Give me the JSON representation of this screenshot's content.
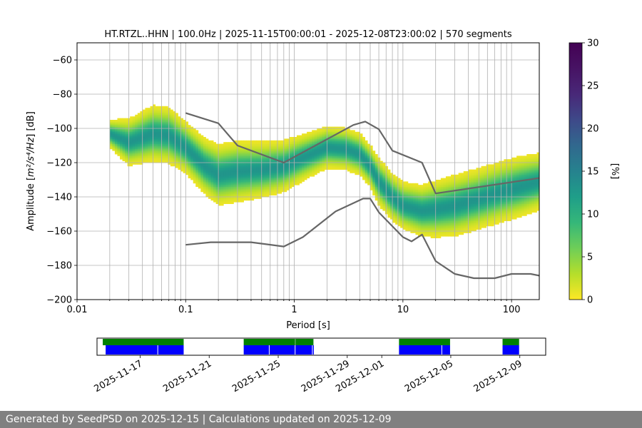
{
  "chart_data": [
    {
      "type": "heatmap",
      "title": "HT.RTZL..HHN | 100.0Hz | 2025-11-15T00:00:01 - 2025-12-08T23:00:02 | 570 segments",
      "xlabel": "Period [s]",
      "ylabel_prefix": "Amplitude [",
      "ylabel_math": "m²/s⁴/Hz",
      "ylabel_suffix": "] [dB]",
      "xscale": "log",
      "xlim": [
        0.01,
        180
      ],
      "ylim": [
        -200,
        -50
      ],
      "xticks": [
        0.01,
        0.1,
        1,
        10,
        100
      ],
      "xtick_labels": [
        "0.01",
        "0.1",
        "1",
        "10",
        "100"
      ],
      "yticks": [
        -200,
        -180,
        -160,
        -140,
        -120,
        -100,
        -80,
        -60
      ],
      "ytick_labels": [
        "−200",
        "−180",
        "−160",
        "−140",
        "−120",
        "−100",
        "−80",
        "−60"
      ],
      "grid": true,
      "colorbar": {
        "label": "[%]",
        "range": [
          0,
          30
        ],
        "ticks": [
          0,
          5,
          10,
          15,
          20,
          25,
          30
        ],
        "tick_labels": [
          "0",
          "5",
          "10",
          "15",
          "20",
          "25",
          "30"
        ],
        "colormap": "viridis"
      },
      "ppsd_mode": {
        "name": "",
        "period": [
          0.02,
          0.03,
          0.05,
          0.07,
          0.1,
          0.15,
          0.2,
          0.3,
          0.5,
          0.8,
          1.2,
          2,
          3,
          4,
          5,
          6,
          8,
          10,
          15,
          20,
          30,
          50,
          80,
          120,
          180
        ],
        "db": [
          -103,
          -108,
          -103,
          -104,
          -111,
          -122,
          -127,
          -125,
          -124,
          -122,
          -117,
          -111,
          -112,
          -115,
          -122,
          -131,
          -140,
          -145,
          -148,
          -147,
          -145,
          -141,
          -137,
          -134,
          -131
        ]
      },
      "ppsd_spread_db": [
        6,
        10,
        12,
        12,
        11,
        12,
        13,
        13,
        12,
        11,
        10,
        9,
        9,
        9,
        9,
        10,
        10,
        10,
        11,
        12,
        13,
        13,
        13,
        13,
        12
      ],
      "series": [
        {
          "period": [
            0.1,
            0.2,
            0.3,
            0.8,
            3.5,
            4.5,
            6,
            8,
            15,
            20,
            180
          ],
          "db": [
            -91,
            -97,
            -110,
            -120,
            -98,
            -96,
            -100.5,
            -113,
            -120,
            -138,
            -129
          ]
        },
        {
          "period": [
            0.1,
            0.17,
            0.4,
            0.8,
            1.2,
            2.4,
            4.3,
            5,
            6,
            10,
            12,
            15,
            20,
            30,
            45,
            70,
            100,
            150,
            180
          ],
          "db": [
            -168,
            -166.5,
            -166.5,
            -169,
            -163.5,
            -148.5,
            -141,
            -141,
            -149,
            -163.5,
            -166,
            -162,
            -177.5,
            -185,
            -187.5,
            -187.5,
            -185,
            -185,
            -186
          ]
        }
      ]
    },
    {
      "type": "timeline",
      "date_ticks": [
        "2025-11-17",
        "2025-11-21",
        "2025-11-25",
        "2025-11-29",
        "2025-12-01",
        "2025-12-05",
        "2025-12-09"
      ],
      "date_range": [
        "2025-11-14T12:00:00",
        "2025-12-10T12:00:00"
      ],
      "coverage_colors": {
        "available": "#0000ff",
        "processed": "#008000"
      },
      "available_intervals": [
        [
          "2025-11-15T00:00",
          "2025-11-18T00:00"
        ],
        [
          "2025-11-18T01:00",
          "2025-11-19T12:30"
        ],
        [
          "2025-11-23T00:00",
          "2025-11-24T11:00"
        ],
        [
          "2025-11-24T12:00",
          "2025-11-25T23:00"
        ],
        [
          "2025-11-26T00:00",
          "2025-11-26T23:00"
        ],
        [
          "2025-11-27T00:00",
          "2025-11-27T01:30"
        ],
        [
          "2025-12-02T00:00",
          "2025-12-04T11:00"
        ],
        [
          "2025-12-04T12:00",
          "2025-12-04T23:00"
        ],
        [
          "2025-12-08T00:00",
          "2025-12-08T23:00"
        ]
      ],
      "processed_intervals": [
        [
          "2025-11-14T20:00",
          "2025-11-19T12:30"
        ],
        [
          "2025-11-23T00:00",
          "2025-11-25T23:30"
        ],
        [
          "2025-11-26T00:00",
          "2025-11-27T01:00"
        ],
        [
          "2025-12-02T00:00",
          "2025-12-04T23:00"
        ],
        [
          "2025-12-08T00:00",
          "2025-12-08T23:00"
        ]
      ]
    }
  ],
  "footer": {
    "text": "Generated by SeedPSD on 2025-12-15 | Calculations updated on 2025-12-09"
  },
  "colors": {
    "line": "#666666",
    "grid": "#b0b0b0",
    "footer_bg": "#808080"
  }
}
